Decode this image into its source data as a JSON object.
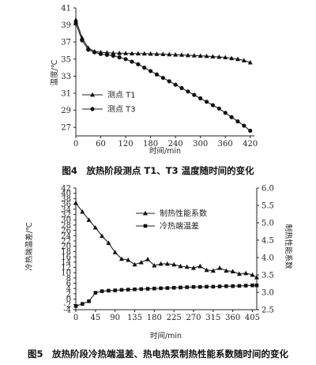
{
  "chart_data": [
    {
      "type": "line",
      "caption": "图4　放热阶段测点 T1、T3 温度随时间的变化",
      "xlabel": "时间/min",
      "ylabel": "温度/℃",
      "xticks": [
        0,
        60,
        120,
        180,
        240,
        300,
        360,
        420
      ],
      "yticks": [
        27,
        29,
        31,
        33,
        35,
        37,
        39,
        41
      ],
      "xlim": [
        0,
        430
      ],
      "ylim": [
        26,
        41
      ],
      "legend_position": "bottom-left",
      "series": [
        {
          "name": "测点 T1",
          "marker": "triangle",
          "x": [
            0,
            15,
            30,
            45,
            60,
            75,
            90,
            105,
            120,
            135,
            150,
            165,
            180,
            195,
            210,
            225,
            240,
            255,
            270,
            285,
            300,
            315,
            330,
            345,
            360,
            375,
            390,
            405,
            420
          ],
          "y": [
            39.6,
            37.5,
            36.3,
            35.9,
            35.8,
            35.75,
            35.7,
            35.7,
            35.68,
            35.66,
            35.65,
            35.64,
            35.62,
            35.6,
            35.58,
            35.55,
            35.52,
            35.5,
            35.45,
            35.42,
            35.38,
            35.35,
            35.3,
            35.25,
            35.2,
            35.1,
            35.0,
            34.85,
            34.6
          ]
        },
        {
          "name": "测点 T3",
          "marker": "circle",
          "x": [
            0,
            15,
            30,
            45,
            60,
            75,
            90,
            105,
            120,
            135,
            150,
            165,
            180,
            195,
            210,
            225,
            240,
            255,
            270,
            285,
            300,
            315,
            330,
            345,
            360,
            375,
            390,
            405,
            420
          ],
          "y": [
            39.2,
            37.2,
            36.1,
            35.8,
            35.6,
            35.5,
            35.4,
            35.2,
            35.0,
            34.7,
            34.4,
            34.0,
            33.6,
            33.2,
            32.8,
            32.4,
            32.0,
            31.6,
            31.2,
            30.8,
            30.4,
            30.0,
            29.6,
            29.2,
            28.7,
            28.2,
            27.7,
            27.2,
            26.6
          ]
        }
      ]
    },
    {
      "type": "line",
      "caption": "图5　放热阶段冷热端温差、热电热泵制热性能系数随时间的变化",
      "xlabel": "时间/min",
      "ylabel": "冷热端温差/℃",
      "y2label": "制热性能系数",
      "xticks": [
        0,
        45,
        90,
        135,
        180,
        225,
        270,
        315,
        360,
        405
      ],
      "yticks": [
        -4,
        -2,
        0,
        2,
        4,
        6,
        8,
        10,
        12,
        14,
        16,
        18,
        20,
        22,
        24,
        26,
        28,
        30,
        32,
        34,
        36,
        38,
        40,
        42
      ],
      "y2ticks": [
        "2.5",
        "3.0",
        "3.5",
        "4.0",
        "4.5",
        "5.0",
        "5.5",
        "6.0"
      ],
      "xlim": [
        0,
        415
      ],
      "ylim": [
        -4,
        42
      ],
      "y2lim": [
        2.5,
        6.0
      ],
      "legend_position": "top-right",
      "series": [
        {
          "name": "制热性能系数",
          "marker": "triangle",
          "axis": "right",
          "x": [
            0,
            15,
            30,
            45,
            60,
            75,
            90,
            105,
            120,
            135,
            150,
            165,
            180,
            195,
            210,
            225,
            240,
            255,
            270,
            285,
            300,
            315,
            330,
            345,
            360,
            375,
            390,
            405,
            415
          ],
          "y": [
            5.57,
            5.32,
            5.08,
            4.86,
            4.62,
            4.42,
            4.15,
            3.96,
            3.93,
            3.8,
            3.86,
            3.95,
            3.77,
            3.82,
            3.82,
            3.8,
            3.75,
            3.73,
            3.7,
            3.75,
            3.64,
            3.62,
            3.7,
            3.62,
            3.6,
            3.53,
            3.55,
            3.5,
            3.43
          ]
        },
        {
          "name": "冷热端温差",
          "marker": "square",
          "axis": "left",
          "x": [
            0,
            15,
            30,
            45,
            60,
            75,
            90,
            105,
            120,
            135,
            150,
            165,
            180,
            195,
            210,
            225,
            240,
            255,
            270,
            285,
            300,
            315,
            330,
            345,
            360,
            375,
            390,
            405,
            415
          ],
          "y": [
            -2.6,
            -1.8,
            -0.8,
            2.4,
            3.0,
            3.2,
            3.3,
            3.5,
            3.6,
            3.7,
            3.8,
            3.9,
            4.0,
            4.1,
            4.2,
            4.3,
            4.4,
            4.5,
            4.6,
            4.6,
            4.7,
            4.7,
            4.8,
            4.9,
            4.9,
            5.0,
            5.1,
            5.2,
            5.2
          ]
        }
      ]
    }
  ]
}
